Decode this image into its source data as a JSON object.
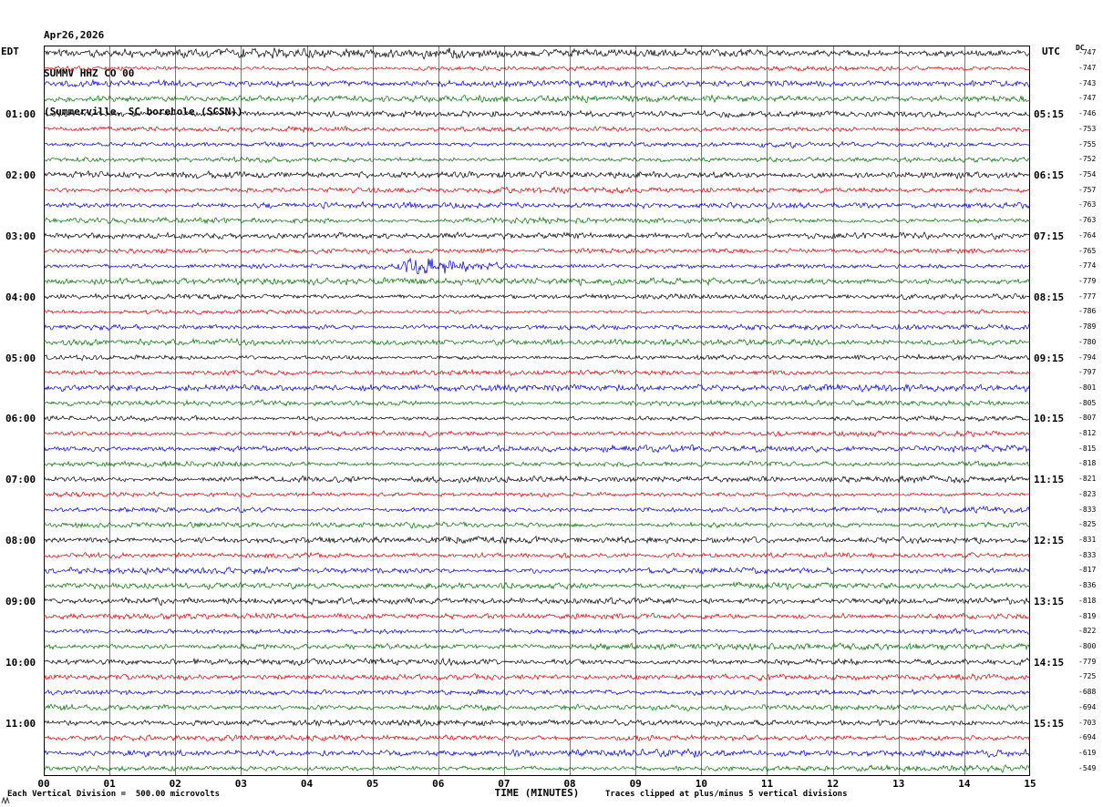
{
  "header": {
    "date": "Apr26,2026",
    "station": "SUMMV HHZ CO 00",
    "location": "(Summerville, SC borehole (SCSN))"
  },
  "axes": {
    "left_tz": "EDT",
    "right_tz": "UTC",
    "dc_label": "DC",
    "x_title": "TIME (MINUTES)"
  },
  "footer": {
    "scale_note": "Each Vertical Division =  500.00 microvolts",
    "clip_note": "Traces clipped at plus/minus 5 vertical divisions"
  },
  "chart_data": {
    "type": "line",
    "title": "Helicorder seismogram SUMMV HHZ CO 00 (Summerville, SC borehole, SCSN) Apr26,2026",
    "x_label": "TIME (MINUTES)",
    "x_range": [
      0,
      15
    ],
    "x_ticks": [
      "00",
      "01",
      "02",
      "03",
      "04",
      "05",
      "06",
      "07",
      "08",
      "09",
      "10",
      "11",
      "12",
      "13",
      "14",
      "15"
    ],
    "num_traces": 48,
    "rows_per_hour": 4,
    "minutes_per_trace": 15,
    "trace_colors": [
      "#000000",
      "#d40000",
      "#0000cc",
      "#007000"
    ],
    "left_time_labels": [
      "01:00",
      "02:00",
      "03:00",
      "04:00",
      "05:00",
      "06:00",
      "07:00",
      "08:00",
      "09:00",
      "10:00",
      "11:00"
    ],
    "right_time_labels": [
      "05:15",
      "06:15",
      "07:15",
      "08:15",
      "09:15",
      "10:15",
      "11:15",
      "12:15",
      "13:15",
      "14:15",
      "15:15"
    ],
    "dc_offsets": [
      -747,
      -747,
      -743,
      -747,
      -746,
      -753,
      -755,
      -752,
      -754,
      -757,
      -763,
      -763,
      -764,
      -765,
      -774,
      -779,
      -777,
      -786,
      -789,
      -780,
      -794,
      -797,
      -801,
      -805,
      -807,
      -812,
      -815,
      -818,
      -821,
      -823,
      -833,
      -825,
      -831,
      -833,
      -817,
      -836,
      -818,
      -819,
      -822,
      -800,
      -779,
      -725,
      -688,
      -694,
      -703,
      -694,
      -619,
      -549
    ],
    "volts_per_division": "500.00 microvolts",
    "clip_divisions": 5,
    "grid": "vertical minute lines",
    "event": {
      "row_index": 14,
      "row_color": "blue",
      "row_left_time": "03:00",
      "start_minute": 5.2,
      "end_minute": 7.7,
      "peak_amplitude_ratio": 3.5,
      "description": "Higher-amplitude burst visible on the 03:00 EDT blue trace around minutes 5-7"
    }
  }
}
